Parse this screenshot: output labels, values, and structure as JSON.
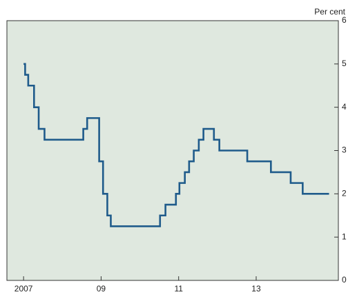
{
  "chart_data": {
    "type": "line",
    "ylabel": "Per cent",
    "step": true,
    "x": [
      2007.0,
      2007.04,
      2007.04,
      2007.12,
      2007.12,
      2007.27,
      2007.27,
      2007.39,
      2007.39,
      2007.54,
      2007.54,
      2008.54,
      2008.54,
      2008.64,
      2008.64,
      2008.95,
      2008.95,
      2009.05,
      2009.05,
      2009.16,
      2009.16,
      2009.25,
      2009.25,
      2010.52,
      2010.52,
      2010.66,
      2010.66,
      2010.93,
      2010.93,
      2011.02,
      2011.02,
      2011.16,
      2011.16,
      2011.27,
      2011.27,
      2011.39,
      2011.39,
      2011.52,
      2011.52,
      2011.64,
      2011.64,
      2011.91,
      2011.91,
      2012.05,
      2012.05,
      2012.77,
      2012.77,
      2013.38,
      2013.38,
      2013.89,
      2013.89,
      2014.2,
      2014.2,
      2014.88
    ],
    "series": [
      {
        "color": "#1f5b8b",
        "values": [
          5,
          5,
          4.75,
          4.75,
          4.5,
          4.5,
          4,
          4,
          3.5,
          3.5,
          3.25,
          3.25,
          3.5,
          3.5,
          3.75,
          3.75,
          2.75,
          2.75,
          2,
          2,
          1.5,
          1.5,
          1.25,
          1.25,
          1.5,
          1.5,
          1.75,
          1.75,
          2,
          2,
          2.25,
          2.25,
          2.5,
          2.5,
          2.75,
          2.75,
          3,
          3,
          3.25,
          3.25,
          3.5,
          3.5,
          3.25,
          3.25,
          3,
          3,
          2.75,
          2.75,
          2.5,
          2.5,
          2.25,
          2.25,
          2,
          2
        ]
      }
    ],
    "xlim": [
      2006.57,
      2015.12
    ],
    "xticks": [
      {
        "value": 2007,
        "label": "2007"
      },
      {
        "value": 2009,
        "label": "09"
      },
      {
        "value": 2011,
        "label": "11"
      },
      {
        "value": 2013,
        "label": "13"
      }
    ],
    "ylim": [
      0,
      6
    ],
    "yticks": [
      0,
      1,
      2,
      3,
      4,
      5,
      6
    ],
    "yaxis_side": "right",
    "background": "#dfe8df"
  }
}
